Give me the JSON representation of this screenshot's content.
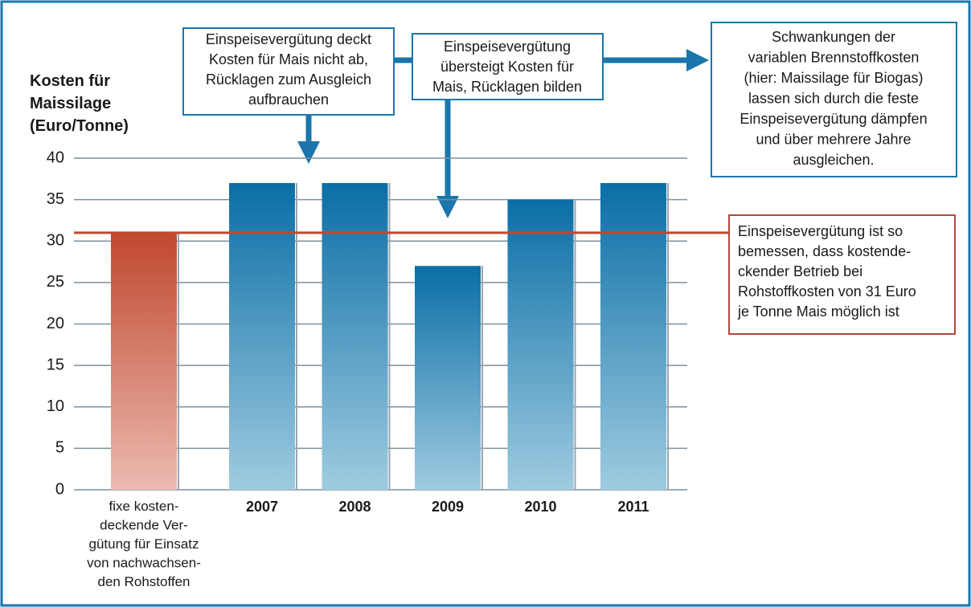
{
  "chart_data": {
    "type": "bar",
    "ylabel": "Kosten für\nMaissilage\n(Euro/Tonne)",
    "categories": [
      "fixe kosten-\ndeckende Ver-\ngütung für Einsatz\nvon nachwachsen-\nden Rohstoffen",
      "2007",
      "2008",
      "2009",
      "2010",
      "2011"
    ],
    "values": [
      31,
      37,
      37,
      27,
      35,
      37
    ],
    "colors": [
      "#c0482e",
      "#0a6ea6",
      "#0a6ea6",
      "#0a6ea6",
      "#0a6ea6",
      "#0a6ea6"
    ],
    "ylim": [
      0,
      40
    ],
    "yticks": [
      0,
      5,
      10,
      15,
      20,
      25,
      30,
      35,
      40
    ],
    "grid": true,
    "reference_line": {
      "value": 31,
      "color": "#c0482e"
    },
    "annotations": [
      "Einspeisevergütung deckt\nKosten für Mais nicht ab,\nRücklagen zum Ausgleich\naufbrauchen",
      "Einspeisevergütung\nübersteigt Kosten für\nMais, Rücklagen bilden",
      "Schwankungen der\nvariablen Brennstoffkosten\n(hier: Maissilage für Biogas)\nlassen sich durch die feste\nEinspeisevergütung dämpfen\nund über mehrere Jahre\nausgleichen.",
      "Einspeisevergütung ist so\nbemessen, dass kostende-\nckender Betrieb bei\nRohstoffkosten von 31 Euro\nje Tonne Mais möglich ist"
    ]
  }
}
